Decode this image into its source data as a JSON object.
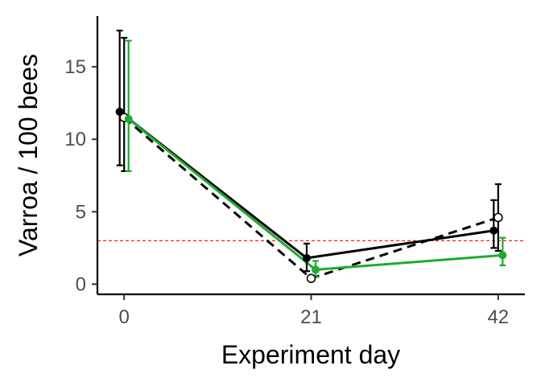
{
  "chart_data": {
    "type": "line",
    "title": "",
    "xlabel": "Experiment day",
    "ylabel": "Varroa / 100 bees",
    "x_ticks": [
      0,
      21,
      42
    ],
    "y_ticks": [
      0,
      5,
      10,
      15
    ],
    "xlim": [
      -3,
      45
    ],
    "ylim": [
      -0.7,
      18.5
    ],
    "grid": false,
    "legend": "none",
    "reference_line": {
      "y": 3,
      "color": "#ff0000",
      "style": "dashed"
    },
    "series": [
      {
        "x": [
          -0.5,
          20.5,
          41.5
        ],
        "y": [
          11.9,
          1.8,
          3.7
        ],
        "err_low": [
          8.2,
          0.9,
          2.5
        ],
        "err_high": [
          17.5,
          2.8,
          5.8
        ],
        "color": "#000000",
        "line": "solid",
        "marker": "filled-circle"
      },
      {
        "x": [
          0.0,
          21.0,
          42.0
        ],
        "y": [
          11.5,
          0.4,
          4.6
        ],
        "err_low": [
          7.8,
          0.4,
          2.3
        ],
        "err_high": [
          17.0,
          0.4,
          6.9
        ],
        "color": "#000000",
        "line": "dashed",
        "marker": "open-circle"
      },
      {
        "x": [
          0.5,
          21.5,
          42.5
        ],
        "y": [
          11.4,
          1.0,
          2.0
        ],
        "err_low": [
          7.8,
          0.5,
          1.3
        ],
        "err_high": [
          16.8,
          1.6,
          3.2
        ],
        "color": "#1faa2f",
        "line": "solid",
        "marker": "filled-circle"
      }
    ]
  }
}
